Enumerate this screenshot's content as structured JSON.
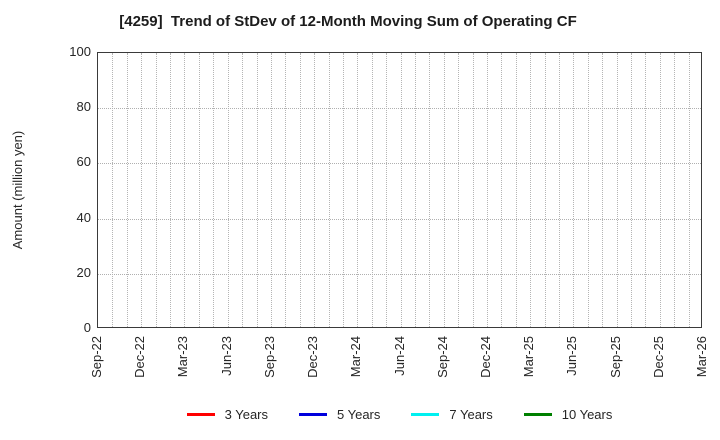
{
  "chart_data": {
    "type": "line",
    "title": "[4259]  Trend of StDev of 12-Month Moving Sum of Operating CF",
    "ylabel": "Amount (million yen)",
    "xlabel": "",
    "ylim": [
      0,
      100
    ],
    "yticks": [
      0,
      20,
      40,
      60,
      80,
      100
    ],
    "x_tick_labels": [
      "Sep-22",
      "Dec-22",
      "Mar-23",
      "Jun-23",
      "Sep-23",
      "Dec-23",
      "Mar-24",
      "Jun-24",
      "Sep-24",
      "Dec-24",
      "Mar-25",
      "Jun-25",
      "Sep-25",
      "Dec-25",
      "Mar-26"
    ],
    "x_total_months": 42,
    "grid": true,
    "legend_position": "bottom",
    "axis_color": "#3a3a3a",
    "grid_color": "#b5b5b5",
    "series": [
      {
        "name": "3 Years",
        "color": "#ff0000",
        "values": []
      },
      {
        "name": "5 Years",
        "color": "#0000dd",
        "values": []
      },
      {
        "name": "7 Years",
        "color": "#00f0f0",
        "values": []
      },
      {
        "name": "10 Years",
        "color": "#008000",
        "values": []
      }
    ]
  }
}
